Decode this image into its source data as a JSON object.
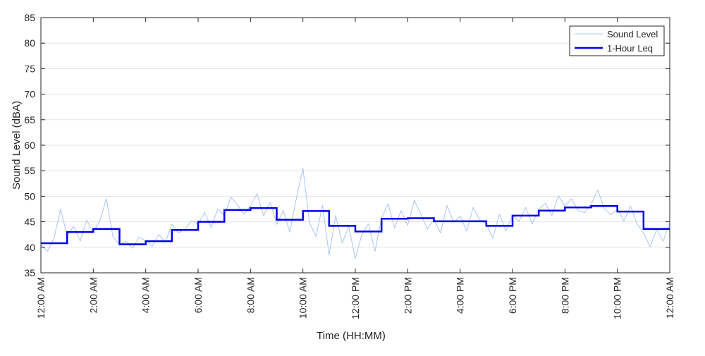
{
  "chart_data": {
    "type": "line",
    "title": "",
    "xlabel": "Time (HH:MM)",
    "ylabel": "Sound Level (dBA)",
    "xlim_hours": [
      0,
      24
    ],
    "ylim": [
      35,
      85
    ],
    "yticks": [
      35,
      40,
      45,
      50,
      55,
      60,
      65,
      70,
      75,
      80,
      85
    ],
    "xtick_hours": [
      0,
      2,
      4,
      6,
      8,
      10,
      12,
      14,
      16,
      18,
      20,
      22,
      24
    ],
    "xtick_labels": [
      "12:00 AM",
      "2:00 AM",
      "4:00 AM",
      "6:00 AM",
      "8:00 AM",
      "10:00 AM",
      "12:00 PM",
      "2:00 PM",
      "4:00 PM",
      "6:00 PM",
      "8:00 PM",
      "10:00 PM",
      "12:00 AM"
    ],
    "grid": "horizontal",
    "legend_position": "top-right",
    "series": [
      {
        "name": "Sound Level",
        "color": "#a9c4f5",
        "style": "thin-line",
        "x_hours": [
          0,
          0.25,
          0.5,
          0.75,
          1,
          1.25,
          1.5,
          1.75,
          2,
          2.25,
          2.5,
          2.75,
          3,
          3.25,
          3.5,
          3.75,
          4,
          4.25,
          4.5,
          4.75,
          5,
          5.25,
          5.5,
          5.75,
          6,
          6.25,
          6.5,
          6.75,
          7,
          7.25,
          7.5,
          7.75,
          8,
          8.25,
          8.5,
          8.75,
          9,
          9.25,
          9.5,
          9.75,
          10,
          10.25,
          10.5,
          10.75,
          11,
          11.25,
          11.5,
          11.75,
          12,
          12.25,
          12.5,
          12.75,
          13,
          13.25,
          13.5,
          13.75,
          14,
          14.25,
          14.5,
          14.75,
          15,
          15.25,
          15.5,
          15.75,
          16,
          16.25,
          16.5,
          16.75,
          17,
          17.25,
          17.5,
          17.75,
          18,
          18.25,
          18.5,
          18.75,
          19,
          19.25,
          19.5,
          19.75,
          20,
          20.25,
          20.5,
          20.75,
          21,
          21.25,
          21.5,
          21.75,
          22,
          22.25,
          22.5,
          22.75,
          23,
          23.25,
          23.5,
          23.75,
          24
        ],
        "values": [
          40.5,
          39.2,
          41.8,
          47.5,
          42.3,
          44.1,
          41.2,
          45.3,
          43.0,
          45.2,
          49.5,
          42.1,
          40.5,
          41.2,
          39.8,
          42.0,
          41.3,
          40.2,
          42.5,
          41.0,
          44.5,
          42.8,
          43.6,
          45.2,
          44.5,
          46.8,
          43.9,
          47.5,
          46.2,
          49.8,
          48.3,
          46.5,
          48.1,
          50.5,
          46.2,
          48.8,
          44.5,
          47.2,
          43.0,
          49.6,
          55.5,
          44.8,
          42.1,
          48.3,
          38.5,
          46.2,
          40.8,
          44.1,
          37.8,
          42.5,
          44.6,
          39.2,
          45.8,
          48.5,
          43.8,
          47.2,
          44.3,
          49.2,
          46.5,
          43.6,
          45.5,
          42.8,
          48.2,
          44.9,
          46.1,
          43.2,
          47.8,
          45.3,
          44.6,
          41.8,
          46.5,
          43.2,
          46.3,
          45.1,
          47.8,
          44.6,
          47.5,
          48.6,
          46.2,
          50.1,
          48.1,
          49.5,
          47.2,
          46.8,
          48.5,
          51.2,
          47.6,
          46.3,
          47.5,
          45.2,
          48.1,
          44.6,
          42.8,
          40.1,
          43.5,
          41.2,
          44.8
        ]
      },
      {
        "name": "1-Hour Leq",
        "color": "#0000ee",
        "style": "step",
        "values": [
          40.8,
          43.0,
          43.6,
          40.6,
          41.2,
          43.4,
          45.0,
          47.3,
          47.7,
          45.4,
          47.1,
          44.2,
          43.1,
          45.6,
          45.7,
          45.1,
          45.1,
          44.2,
          46.2,
          47.2,
          47.8,
          48.1,
          47.0,
          43.6
        ]
      }
    ]
  }
}
